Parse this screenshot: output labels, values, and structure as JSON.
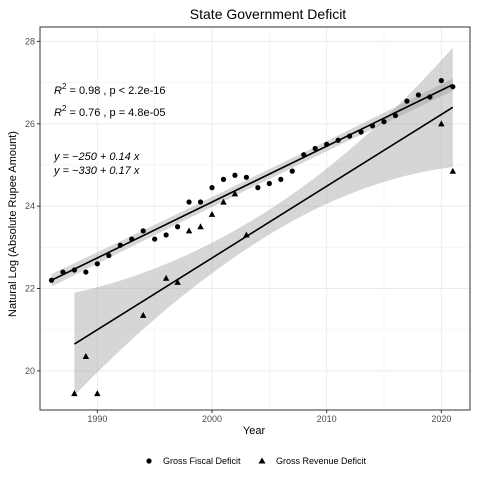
{
  "chart_data": {
    "type": "scatter",
    "title": "State Government Deficit",
    "xlabel": "Year",
    "ylabel": "Natural Log (Absolute Rupee Amount)",
    "xlim": [
      1985,
      2022.5
    ],
    "ylim": [
      19.05,
      28.35
    ],
    "x_ticks": [
      1990,
      2000,
      2010,
      2020
    ],
    "y_ticks": [
      20,
      22,
      24,
      26,
      28
    ],
    "grid": true,
    "legend_position": "bottom",
    "annotations": {
      "r2_fiscal": {
        "r2": "R",
        "sup": "2",
        "rest": " = 0.98 , p < 2.2e-16"
      },
      "r2_revenue": {
        "r2": "R",
        "sup": "2",
        "rest": " = 0.76 , p = 4.8e-05"
      },
      "eq_fiscal": "y = −250 + 0.14 x",
      "eq_revenue": "y = −330 + 0.17 x"
    },
    "series": [
      {
        "name": "Gross Fiscal Deficit",
        "marker": "circle",
        "color": "#000000",
        "fit": {
          "intercept": -250,
          "slope": 0.14,
          "x_range": [
            1986,
            2021
          ],
          "y_range": [
            22.2,
            26.95
          ],
          "ci_half_width": [
            0.12,
            0.15
          ]
        },
        "points": [
          {
            "x": 1986,
            "y": 22.2
          },
          {
            "x": 1987,
            "y": 22.4
          },
          {
            "x": 1988,
            "y": 22.45
          },
          {
            "x": 1989,
            "y": 22.4
          },
          {
            "x": 1990,
            "y": 22.6
          },
          {
            "x": 1991,
            "y": 22.8
          },
          {
            "x": 1992,
            "y": 23.05
          },
          {
            "x": 1993,
            "y": 23.2
          },
          {
            "x": 1994,
            "y": 23.4
          },
          {
            "x": 1995,
            "y": 23.2
          },
          {
            "x": 1996,
            "y": 23.3
          },
          {
            "x": 1997,
            "y": 23.5
          },
          {
            "x": 1998,
            "y": 24.1
          },
          {
            "x": 1999,
            "y": 24.1
          },
          {
            "x": 2000,
            "y": 24.45
          },
          {
            "x": 2001,
            "y": 24.65
          },
          {
            "x": 2002,
            "y": 24.75
          },
          {
            "x": 2003,
            "y": 24.7
          },
          {
            "x": 2004,
            "y": 24.45
          },
          {
            "x": 2005,
            "y": 24.55
          },
          {
            "x": 2006,
            "y": 24.65
          },
          {
            "x": 2007,
            "y": 24.85
          },
          {
            "x": 2008,
            "y": 25.25
          },
          {
            "x": 2009,
            "y": 25.4
          },
          {
            "x": 2010,
            "y": 25.5
          },
          {
            "x": 2011,
            "y": 25.6
          },
          {
            "x": 2012,
            "y": 25.7
          },
          {
            "x": 2013,
            "y": 25.8
          },
          {
            "x": 2014,
            "y": 25.95
          },
          {
            "x": 2015,
            "y": 26.05
          },
          {
            "x": 2016,
            "y": 26.2
          },
          {
            "x": 2017,
            "y": 26.55
          },
          {
            "x": 2018,
            "y": 26.7
          },
          {
            "x": 2019,
            "y": 26.65
          },
          {
            "x": 2020,
            "y": 27.05
          },
          {
            "x": 2021,
            "y": 26.9
          }
        ]
      },
      {
        "name": "Gross Revenue Deficit",
        "marker": "triangle",
        "color": "#000000",
        "fit": {
          "intercept": -330,
          "slope": 0.17,
          "x_range": [
            1988,
            2021
          ],
          "y_range": [
            20.65,
            26.4
          ],
          "ci_half_width_start": 1.25,
          "ci_half_width_mid": 0.3,
          "ci_half_width_end": 1.45
        },
        "points": [
          {
            "x": 1988,
            "y": 19.45
          },
          {
            "x": 1989,
            "y": 20.35
          },
          {
            "x": 1990,
            "y": 19.45
          },
          {
            "x": 1994,
            "y": 21.35
          },
          {
            "x": 1996,
            "y": 22.25
          },
          {
            "x": 1997,
            "y": 22.15
          },
          {
            "x": 1998,
            "y": 23.4
          },
          {
            "x": 1999,
            "y": 23.5
          },
          {
            "x": 2000,
            "y": 23.8
          },
          {
            "x": 2001,
            "y": 24.1
          },
          {
            "x": 2002,
            "y": 24.3
          },
          {
            "x": 2003,
            "y": 23.3
          },
          {
            "x": 2020,
            "y": 26.0
          },
          {
            "x": 2021,
            "y": 24.85
          }
        ]
      }
    ]
  }
}
